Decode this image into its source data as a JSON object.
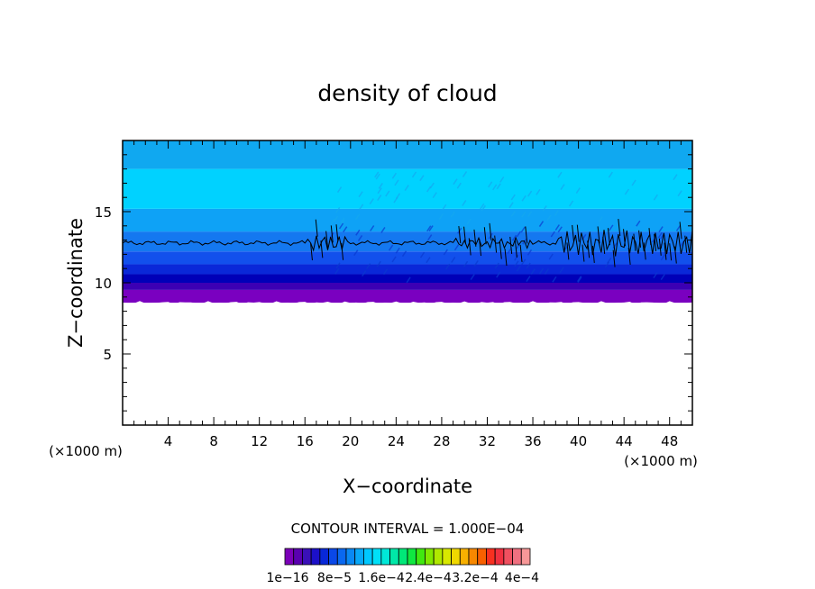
{
  "chart_data": {
    "type": "heatmap",
    "title": "density of cloud",
    "xlabel": "X−coordinate",
    "ylabel": "Z−coordinate",
    "x_unit_left": "(×1000 m)",
    "x_unit_right": "(×1000 m)",
    "xlim": [
      0,
      50
    ],
    "ylim": [
      0,
      20
    ],
    "x_ticks": [
      4,
      8,
      12,
      16,
      20,
      24,
      28,
      32,
      36,
      40,
      44,
      48
    ],
    "y_ticks": [
      5,
      10,
      15
    ],
    "cloud_base_z": 8.6,
    "contour_line_z": 12.8,
    "layers": [
      {
        "z0": 8.6,
        "z1": 9.5,
        "color": "#7a00c0"
      },
      {
        "z0": 9.5,
        "z1": 10.0,
        "color": "#3c00b4"
      },
      {
        "z0": 10.0,
        "z1": 10.6,
        "color": "#0000b8"
      },
      {
        "z0": 10.6,
        "z1": 11.3,
        "color": "#0a28d8"
      },
      {
        "z0": 11.3,
        "z1": 12.2,
        "color": "#1250ec"
      },
      {
        "z0": 12.2,
        "z1": 13.6,
        "color": "#1478f0"
      },
      {
        "z0": 13.6,
        "z1": 15.2,
        "color": "#0ea2f6"
      },
      {
        "z0": 15.2,
        "z1": 18.0,
        "color": "#00d2ff"
      },
      {
        "z0": 18.0,
        "z1": 20.0,
        "color": "#10a8f0"
      }
    ],
    "contour_interval_text": "CONTOUR INTERVAL = 1.000E−04",
    "colorbar": {
      "colors": [
        "#7b00b8",
        "#5a00b0",
        "#3a10b8",
        "#1c10c8",
        "#0828d8",
        "#0a48e8",
        "#0a68f0",
        "#0a88f4",
        "#08a8f8",
        "#00c8ff",
        "#00e0f8",
        "#00e8d8",
        "#00e8a8",
        "#00e878",
        "#10e840",
        "#40e810",
        "#80e800",
        "#b0e800",
        "#d8e800",
        "#f0d800",
        "#f8b000",
        "#f88800",
        "#f86000",
        "#f83020",
        "#f03040",
        "#f05060",
        "#f07080",
        "#f89898"
      ],
      "labels": [
        "1e−16",
        "8e−5",
        "1.6e−4",
        "2.4e−4",
        "3.2e−4",
        "4e−4"
      ]
    }
  }
}
